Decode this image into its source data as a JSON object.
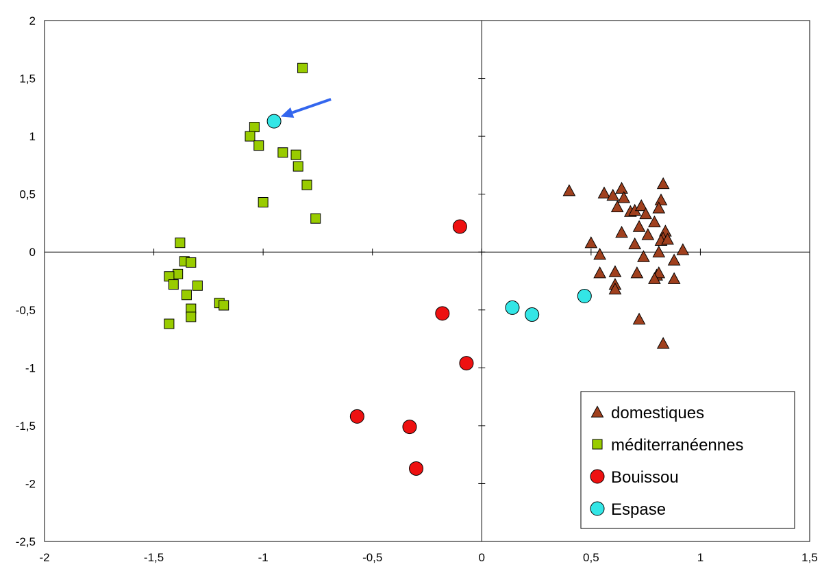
{
  "chart_data": {
    "type": "scatter",
    "title": "",
    "xlabel": "",
    "ylabel": "",
    "xlim": [
      -2,
      1.5
    ],
    "ylim": [
      -2.5,
      2
    ],
    "x_ticks": [
      "-2",
      "-1,5",
      "-1",
      "-0,5",
      "0",
      "0,5",
      "1",
      "1,5"
    ],
    "y_ticks": [
      "2",
      "1,5",
      "1",
      "0,5",
      "0",
      "-0,5",
      "-1",
      "-1,5",
      "-2",
      "-2,5"
    ],
    "x_tick_values": [
      -2,
      -1.5,
      -1,
      -0.5,
      0,
      0.5,
      1,
      1.5
    ],
    "y_tick_values": [
      2,
      1.5,
      1,
      0.5,
      0,
      -0.5,
      -1,
      -1.5,
      -2,
      -2.5
    ],
    "grid": false,
    "zero_axes": true,
    "legend_position": "bottom-right",
    "series": [
      {
        "name": "domestiques",
        "marker": "triangle",
        "color": "#A0401E",
        "points": [
          [
            0.4,
            0.53
          ],
          [
            0.56,
            0.51
          ],
          [
            0.6,
            0.49
          ],
          [
            0.64,
            0.55
          ],
          [
            0.65,
            0.47
          ],
          [
            0.62,
            0.39
          ],
          [
            0.68,
            0.35
          ],
          [
            0.7,
            0.36
          ],
          [
            0.73,
            0.4
          ],
          [
            0.75,
            0.33
          ],
          [
            0.83,
            0.59
          ],
          [
            0.82,
            0.45
          ],
          [
            0.81,
            0.38
          ],
          [
            0.79,
            0.26
          ],
          [
            0.72,
            0.22
          ],
          [
            0.76,
            0.15
          ],
          [
            0.64,
            0.17
          ],
          [
            0.7,
            0.07
          ],
          [
            0.84,
            0.18
          ],
          [
            0.83,
            0.12
          ],
          [
            0.82,
            0.1
          ],
          [
            0.85,
            0.11
          ],
          [
            0.92,
            0.02
          ],
          [
            0.5,
            0.08
          ],
          [
            0.54,
            -0.02
          ],
          [
            0.74,
            -0.04
          ],
          [
            0.81,
            0.0
          ],
          [
            0.88,
            -0.07
          ],
          [
            0.61,
            -0.17
          ],
          [
            0.54,
            -0.18
          ],
          [
            0.71,
            -0.18
          ],
          [
            0.8,
            -0.2
          ],
          [
            0.81,
            -0.18
          ],
          [
            0.79,
            -0.23
          ],
          [
            0.88,
            -0.23
          ],
          [
            0.61,
            -0.28
          ],
          [
            0.61,
            -0.32
          ],
          [
            0.72,
            -0.58
          ],
          [
            0.83,
            -0.79
          ]
        ]
      },
      {
        "name": "méditerranéennes",
        "marker": "square",
        "color": "#99CC00",
        "points": [
          [
            -0.82,
            1.59
          ],
          [
            -1.04,
            1.08
          ],
          [
            -1.06,
            1.0
          ],
          [
            -1.02,
            0.92
          ],
          [
            -0.91,
            0.86
          ],
          [
            -0.85,
            0.84
          ],
          [
            -0.84,
            0.74
          ],
          [
            -0.8,
            0.58
          ],
          [
            -1.0,
            0.43
          ],
          [
            -0.76,
            0.29
          ],
          [
            -1.38,
            0.08
          ],
          [
            -1.36,
            -0.08
          ],
          [
            -1.33,
            -0.09
          ],
          [
            -1.39,
            -0.19
          ],
          [
            -1.43,
            -0.21
          ],
          [
            -1.41,
            -0.28
          ],
          [
            -1.3,
            -0.29
          ],
          [
            -1.35,
            -0.37
          ],
          [
            -1.2,
            -0.44
          ],
          [
            -1.18,
            -0.46
          ],
          [
            -1.33,
            -0.49
          ],
          [
            -1.33,
            -0.56
          ],
          [
            -1.43,
            -0.62
          ]
        ]
      },
      {
        "name": "Bouissou",
        "marker": "circle",
        "color": "#EE1111",
        "points": [
          [
            -0.1,
            0.22
          ],
          [
            -0.18,
            -0.53
          ],
          [
            -0.07,
            -0.96
          ],
          [
            -0.57,
            -1.42
          ],
          [
            -0.33,
            -1.51
          ],
          [
            -0.3,
            -1.87
          ]
        ]
      },
      {
        "name": "Espase",
        "marker": "circle",
        "color": "#33E6E6",
        "points": [
          [
            -0.95,
            1.13
          ],
          [
            0.14,
            -0.48
          ],
          [
            0.23,
            -0.54
          ],
          [
            0.47,
            -0.38
          ]
        ]
      }
    ],
    "annotations": [
      {
        "type": "arrow",
        "color": "#3366EE",
        "from": [
          -0.69,
          1.32
        ],
        "to": [
          -0.92,
          1.17
        ]
      }
    ]
  }
}
